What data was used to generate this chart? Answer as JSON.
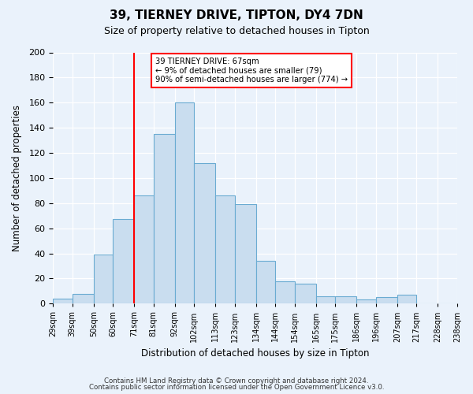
{
  "title": "39, TIERNEY DRIVE, TIPTON, DY4 7DN",
  "subtitle": "Size of property relative to detached houses in Tipton",
  "xlabel": "Distribution of detached houses by size in Tipton",
  "ylabel": "Number of detached properties",
  "bar_values": [
    4,
    8,
    39,
    67,
    86,
    135,
    160,
    112,
    86,
    79,
    34,
    18,
    16,
    6,
    6,
    3,
    5,
    7,
    0,
    0
  ],
  "bin_edges": [
    29,
    39,
    50,
    60,
    71,
    81,
    92,
    102,
    113,
    123,
    134,
    144,
    154,
    165,
    175,
    186,
    196,
    207,
    217,
    228,
    238
  ],
  "bin_labels": [
    "29sqm",
    "39sqm",
    "50sqm",
    "60sqm",
    "71sqm",
    "81sqm",
    "92sqm",
    "102sqm",
    "113sqm",
    "123sqm",
    "134sqm",
    "144sqm",
    "154sqm",
    "165sqm",
    "175sqm",
    "186sqm",
    "196sqm",
    "207sqm",
    "217sqm",
    "228sqm",
    "238sqm"
  ],
  "bar_color": "#c9ddef",
  "bar_edge_color": "#6aabd2",
  "vline_x": 71,
  "vline_color": "red",
  "annotation_title": "39 TIERNEY DRIVE: 67sqm",
  "annotation_line1": "← 9% of detached houses are smaller (79)",
  "annotation_line2": "90% of semi-detached houses are larger (774) →",
  "annotation_box_color": "white",
  "annotation_box_edge": "red",
  "ylim": [
    0,
    200
  ],
  "yticks": [
    0,
    20,
    40,
    60,
    80,
    100,
    120,
    140,
    160,
    180,
    200
  ],
  "footer1": "Contains HM Land Registry data © Crown copyright and database right 2024.",
  "footer2": "Contains public sector information licensed under the Open Government Licence v3.0.",
  "bg_color": "#eaf2fb",
  "plot_bg_color": "#eaf2fb"
}
